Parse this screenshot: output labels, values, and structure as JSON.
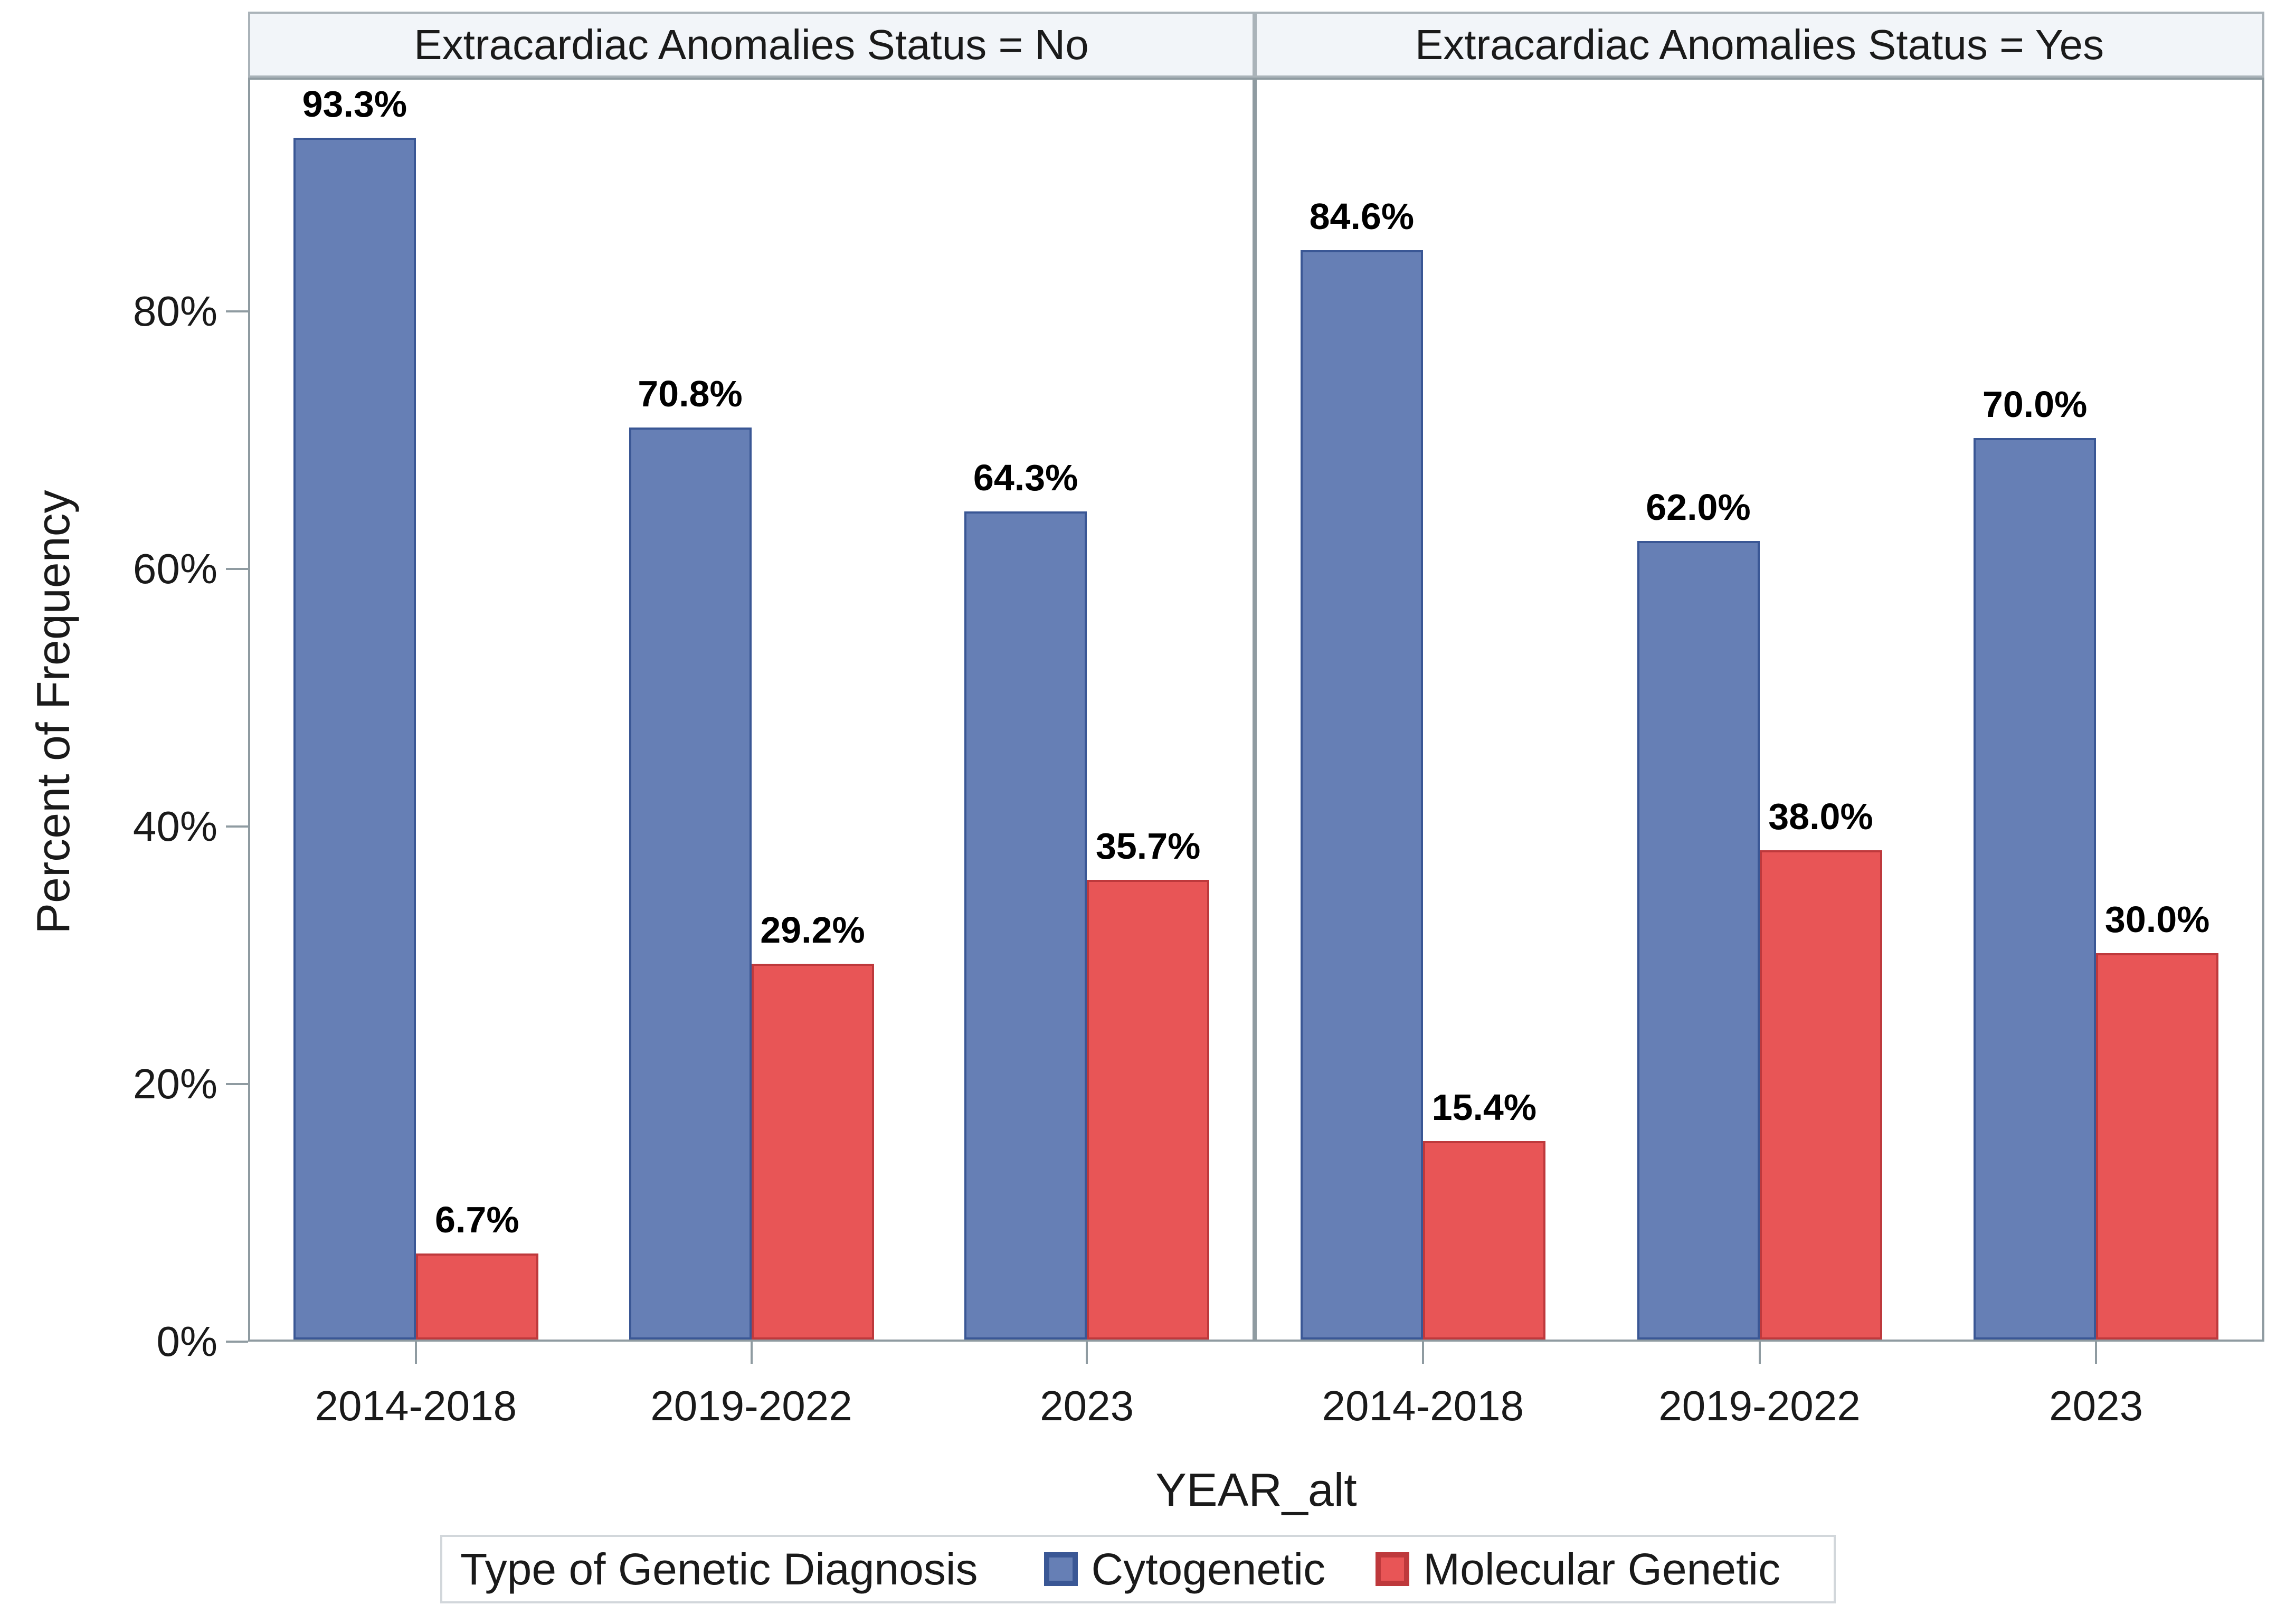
{
  "chart_data": {
    "type": "bar",
    "title": "",
    "xlabel": "YEAR_alt",
    "ylabel": "Percent of Frequency",
    "yticks_values": [
      0,
      20,
      40,
      60,
      80
    ],
    "yticks_labels": [
      "0%",
      "20%",
      "40%",
      "60%",
      "80%"
    ],
    "ylim": [
      0,
      98.2
    ],
    "grid": false,
    "legend_position": "bottom",
    "value_label_format": "one-decimal-percent",
    "categories": [
      "2014-2018",
      "2019-2022",
      "2023"
    ],
    "facets": [
      {
        "title": "Extracardiac Anomalies Status = No",
        "series": [
          {
            "name": "Cytogenetic",
            "values": [
              93.3,
              70.8,
              64.3
            ]
          },
          {
            "name": "Molecular Genetic",
            "values": [
              6.7,
              29.2,
              35.7
            ]
          }
        ]
      },
      {
        "title": "Extracardiac Anomalies Status = Yes",
        "series": [
          {
            "name": "Cytogenetic",
            "values": [
              84.6,
              62.0,
              70.0
            ]
          },
          {
            "name": "Molecular Genetic",
            "values": [
              15.4,
              38.0,
              30.0
            ]
          }
        ]
      }
    ]
  },
  "legend": {
    "title": "Type of Genetic Diagnosis",
    "entries": [
      {
        "label": "Cytogenetic",
        "fill": "#667fb5",
        "border": "#3a5795"
      },
      {
        "label": "Molecular Genetic",
        "fill": "#e85556",
        "border": "#be393c"
      }
    ]
  },
  "colors": {
    "panel_border": "#8f9ba1",
    "header_fill": "#f2f5f9",
    "header_border": "#aab3b9",
    "bar_blue_fill": "#667fb5",
    "bar_blue_border": "#3a5795",
    "bar_red_fill": "#e85556",
    "bar_red_border": "#be393c",
    "legend_border": "#d2d7db",
    "text": "#1a1a1a"
  }
}
